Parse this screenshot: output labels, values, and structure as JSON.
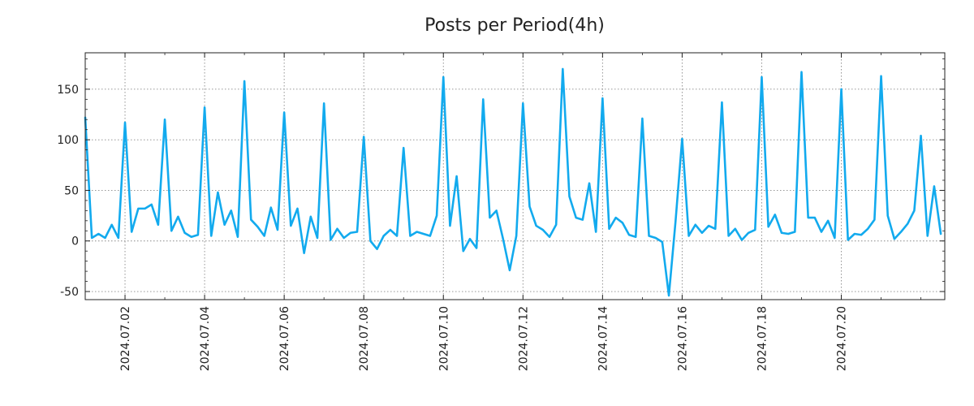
{
  "chart_data": {
    "type": "line",
    "title": "Posts per Period(4h)",
    "xlabel": "",
    "ylabel": "",
    "ylim": [
      -58,
      186
    ],
    "yticks": [
      -50,
      0,
      50,
      100,
      150
    ],
    "x_start": "2024.07.01 00:00",
    "x_interval_hours": 4,
    "x_range_days": [
      0,
      21.6
    ],
    "grid": true,
    "legend": "none",
    "color": "#12aaee",
    "xtick_labels": [
      {
        "label": "2024.07.02",
        "day": 1
      },
      {
        "label": "2024.07.04",
        "day": 3
      },
      {
        "label": "2024.07.06",
        "day": 5
      },
      {
        "label": "2024.07.08",
        "day": 7
      },
      {
        "label": "2024.07.10",
        "day": 9
      },
      {
        "label": "2024.07.12",
        "day": 11
      },
      {
        "label": "2024.07.14",
        "day": 13
      },
      {
        "label": "2024.07.16",
        "day": 15
      },
      {
        "label": "2024.07.18",
        "day": 17
      },
      {
        "label": "2024.07.20",
        "day": 19
      }
    ],
    "series": [
      {
        "name": "Posts",
        "values": [
          122,
          3,
          7,
          3,
          16,
          3,
          117,
          9,
          32,
          32,
          36,
          16,
          120,
          10,
          24,
          8,
          4,
          6,
          132,
          5,
          48,
          16,
          30,
          4,
          158,
          21,
          14,
          5,
          33,
          11,
          127,
          15,
          32,
          -12,
          24,
          3,
          136,
          1,
          12,
          3,
          8,
          9,
          103,
          0,
          -8,
          5,
          11,
          5,
          92,
          5,
          9,
          7,
          5,
          25,
          162,
          15,
          64,
          -10,
          2,
          -7,
          140,
          23,
          30,
          2,
          -29,
          5,
          136,
          34,
          15,
          11,
          4,
          16,
          170,
          44,
          23,
          21,
          57,
          9,
          141,
          12,
          23,
          18,
          6,
          4,
          121,
          5,
          3,
          -1,
          -54,
          19,
          101,
          5,
          16,
          8,
          15,
          12,
          137,
          5,
          12,
          1,
          8,
          11,
          162,
          14,
          26,
          8,
          7,
          9,
          167,
          23,
          23,
          9,
          20,
          3,
          150,
          1,
          7,
          6,
          12,
          21,
          163,
          25,
          2,
          9,
          17,
          30,
          104,
          5,
          54,
          7
        ]
      }
    ]
  }
}
